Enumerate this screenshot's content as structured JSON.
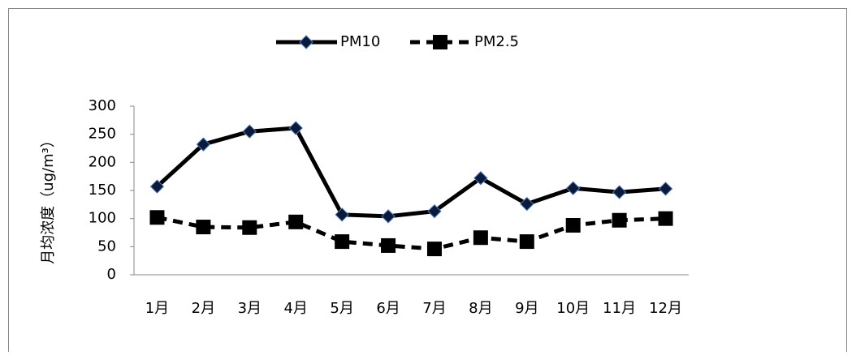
{
  "chart_data": {
    "type": "line",
    "y_label": "月均浓度（ug/m³）",
    "categories": [
      "1月",
      "2月",
      "3月",
      "4月",
      "5月",
      "6月",
      "7月",
      "8月",
      "9月",
      "10月",
      "11月",
      "12月"
    ],
    "series": [
      {
        "name": "PM10",
        "color": "#000000",
        "marker": "diamond",
        "dashed": false,
        "values": [
          157,
          232,
          255,
          261,
          107,
          104,
          113,
          172,
          126,
          154,
          147,
          153
        ]
      },
      {
        "name": "PM2.5",
        "color": "#000000",
        "marker": "square",
        "dashed": true,
        "values": [
          102,
          85,
          84,
          94,
          59,
          52,
          46,
          66,
          59,
          88,
          97,
          100
        ]
      }
    ],
    "ylim": [
      0,
      300
    ],
    "yticks": [
      0,
      50,
      100,
      150,
      200,
      250,
      300
    ],
    "grid": false,
    "legend": "top"
  }
}
